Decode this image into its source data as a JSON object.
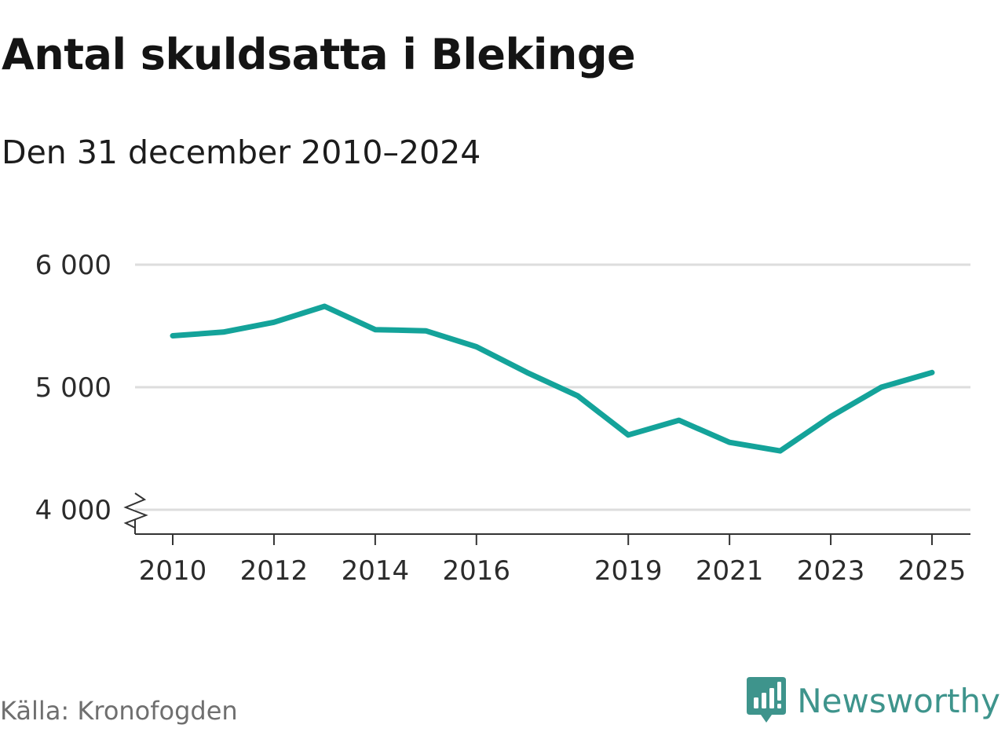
{
  "title": "Antal skuldsatta i Blekinge",
  "subtitle": "Den 31 december 2010–2024",
  "source": "Källa: Kronofogden",
  "brand": {
    "name": "Newsworthy",
    "logo_icon": "bar-chart-speech-bubble-icon",
    "color": "#3e948c"
  },
  "colors": {
    "line": "#14a39a",
    "grid": "#dddddd",
    "axis": "#333333"
  },
  "chart_data": {
    "type": "line",
    "title": "Antal skuldsatta i Blekinge",
    "subtitle": "Den 31 december 2010–2024",
    "xlabel": "",
    "ylabel": "",
    "x_ticks": [
      2010,
      2012,
      2014,
      2016,
      2019,
      2021,
      2023,
      2025
    ],
    "x_tick_labels": [
      "2010",
      "2012",
      "2014",
      "2016",
      "2019",
      "2021",
      "2023",
      "2025"
    ],
    "y_ticks": [
      4000,
      5000,
      6000
    ],
    "y_tick_labels": [
      "4 000",
      "5 000",
      "6 000"
    ],
    "ylim": [
      4000,
      6000
    ],
    "y_axis_break": true,
    "grid": true,
    "legend": "none",
    "series": [
      {
        "x": [
          2010,
          2011,
          2012,
          2013,
          2014,
          2015,
          2016,
          2017,
          2018,
          2019,
          2020,
          2021,
          2022,
          2023,
          2024,
          2025
        ],
        "values": [
          5420,
          5450,
          5530,
          5660,
          5470,
          5460,
          5330,
          5120,
          4930,
          4610,
          4730,
          4550,
          4480,
          4760,
          5000,
          5120
        ]
      }
    ]
  }
}
